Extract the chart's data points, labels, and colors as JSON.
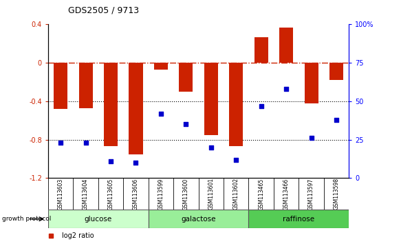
{
  "title": "GDS2505 / 9713",
  "samples": [
    "GSM113603",
    "GSM113604",
    "GSM113605",
    "GSM113606",
    "GSM113599",
    "GSM113600",
    "GSM113601",
    "GSM113602",
    "GSM113465",
    "GSM113466",
    "GSM113597",
    "GSM113598"
  ],
  "log2_ratio": [
    -0.48,
    -0.47,
    -0.87,
    -0.95,
    -0.07,
    -0.3,
    -0.75,
    -0.87,
    0.27,
    0.37,
    -0.42,
    -0.18
  ],
  "percentile_rank": [
    23,
    23,
    11,
    10,
    42,
    35,
    20,
    12,
    47,
    58,
    26,
    38
  ],
  "groups": [
    {
      "name": "glucose",
      "start": 0,
      "end": 3,
      "color": "#ccffcc"
    },
    {
      "name": "galactose",
      "start": 4,
      "end": 7,
      "color": "#99ee99"
    },
    {
      "name": "raffinose",
      "start": 8,
      "end": 11,
      "color": "#55cc55"
    }
  ],
  "bar_color": "#cc2200",
  "dot_color": "#0000cc",
  "ylim_left": [
    -1.2,
    0.4
  ],
  "ylim_right": [
    0,
    100
  ],
  "yticks_left": [
    -1.2,
    -0.8,
    -0.4,
    0.0,
    0.4
  ],
  "yticks_right": [
    0,
    25,
    50,
    75,
    100
  ],
  "hline_y": 0.0,
  "dotted_lines": [
    -0.4,
    -0.8
  ],
  "background_color": "#ffffff",
  "plot_bg_color": "#ffffff",
  "bar_width": 0.55
}
